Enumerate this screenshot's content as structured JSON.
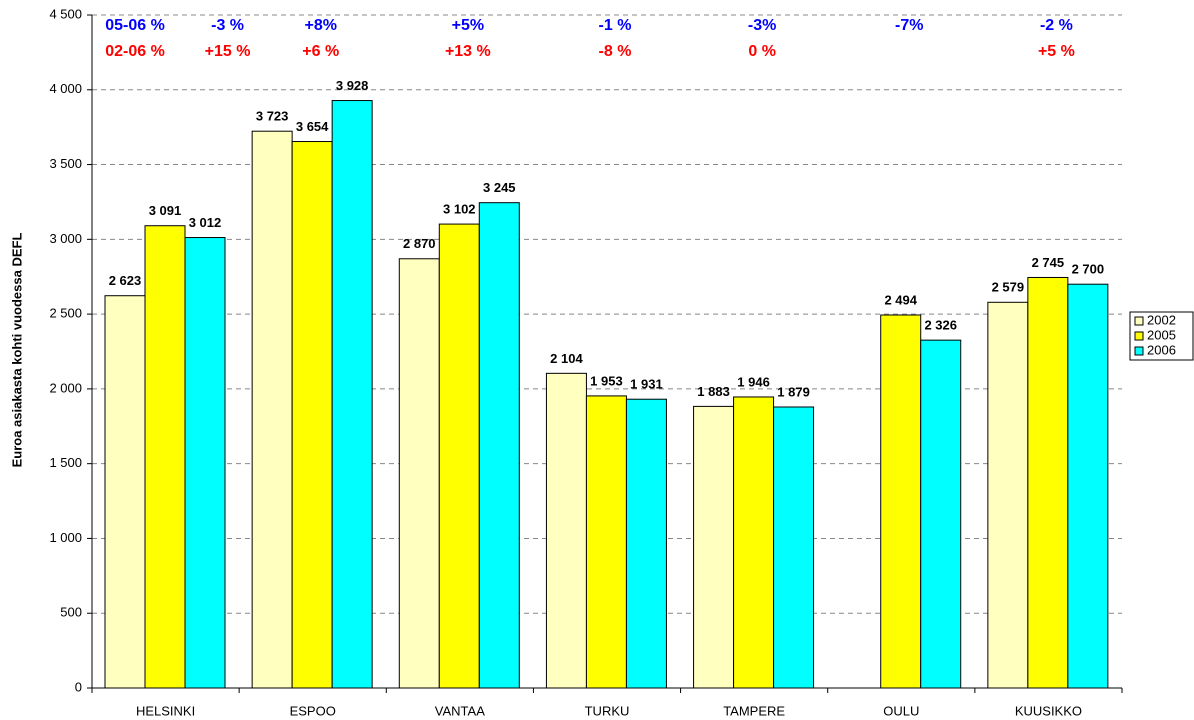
{
  "chart_data": {
    "type": "bar",
    "y_label": "Euroa asiakasta kohti vuodessa DEFL",
    "categories": [
      "HELSINKI",
      "ESPOO",
      "VANTAA",
      "TURKU",
      "TAMPERE",
      "OULU",
      "KUUSIKKO"
    ],
    "series": [
      {
        "name": "2002",
        "color": "#ffffc0",
        "values": [
          2623,
          3723,
          2870,
          2104,
          1883,
          null,
          2579
        ],
        "value_labels": [
          "2 623",
          "3 723",
          "2 870",
          "2 104",
          "1 883",
          null,
          "2 579"
        ]
      },
      {
        "name": "2005",
        "color": "#ffff00",
        "values": [
          3091,
          3654,
          3102,
          1953,
          1946,
          2494,
          2745
        ],
        "value_labels": [
          "3 091",
          "3 654",
          "3 102",
          "1 953",
          "1 946",
          "2 494",
          "2 745"
        ]
      },
      {
        "name": "2006",
        "color": "#00ffff",
        "values": [
          3012,
          3928,
          3245,
          1931,
          1879,
          2326,
          2700
        ],
        "value_labels": [
          "3 012",
          "3 928",
          "3 245",
          "1 931",
          "1 879",
          "2 326",
          "2 700"
        ]
      }
    ],
    "annotations": [
      {
        "label": "05-06 %",
        "color": "#0000ff",
        "values": [
          "-3 %",
          "+8%",
          "+5%",
          "-1 %",
          "-3%",
          "-7%",
          "-2 %"
        ]
      },
      {
        "label": "02-06 %",
        "color": "#ff0000",
        "values": [
          "+15 %",
          "+6 %",
          "+13 %",
          "-8 %",
          "0 %",
          null,
          "+5 %"
        ]
      }
    ],
    "ylim": [
      0,
      4500
    ],
    "yticks": [
      0,
      500,
      {
        "value": 1000,
        "label": "1 000"
      },
      {
        "value": 1500,
        "label": "1 500"
      },
      {
        "value": 2000,
        "label": "2 000"
      },
      {
        "value": 2500,
        "label": "2 500"
      },
      {
        "value": 3000,
        "label": "3 000"
      },
      {
        "value": 3500,
        "label": "3 500"
      },
      {
        "value": 4000,
        "label": "4 000"
      },
      {
        "value": 4500,
        "label": "4 500"
      }
    ],
    "grid": true,
    "legend": "right"
  }
}
